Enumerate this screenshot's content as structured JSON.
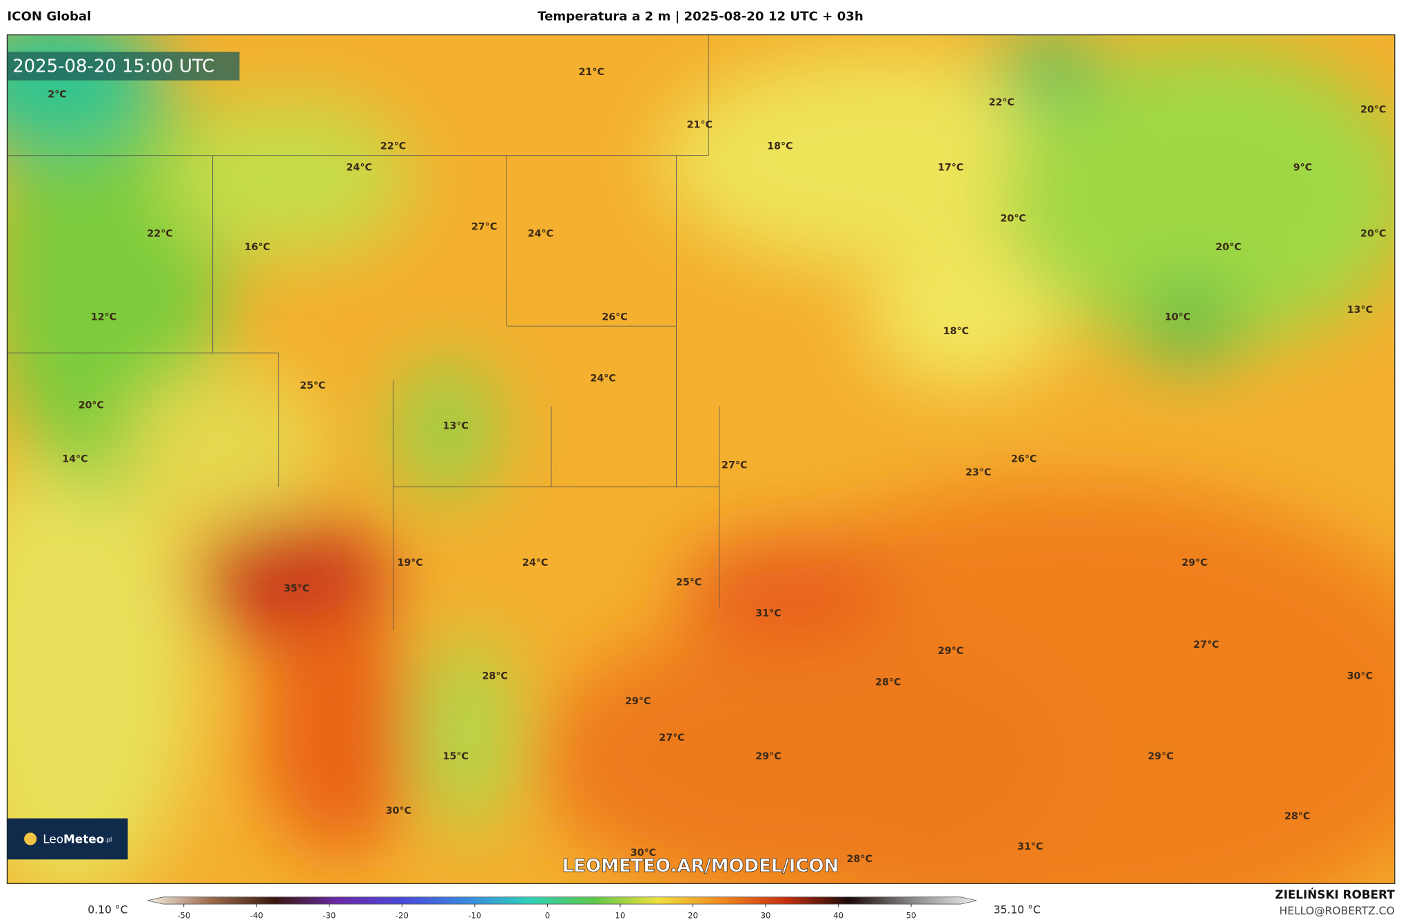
{
  "header": {
    "model": "ICON Global",
    "title": "Temperatura a 2 m | 2025-08-20 12 UTC + 03h"
  },
  "map": {
    "timestamp": "2025-08-20 15:00 UTC",
    "watermark": "LEOMETEO.AR/MODEL/ICON",
    "logo": {
      "part1": "Leo",
      "part2": "Meteo",
      "suffix": ".pl"
    },
    "labels": [
      "2°C",
      "21°C",
      "21°C",
      "18°C",
      "22°C",
      "20°C",
      "22°C",
      "24°C",
      "17°C",
      "9°C",
      "20°C",
      "22°C",
      "27°C",
      "24°C",
      "16°C",
      "20°C",
      "20°C",
      "12°C",
      "26°C",
      "10°C",
      "13°C",
      "18°C",
      "24°C",
      "25°C",
      "20°C",
      "13°C",
      "14°C",
      "27°C",
      "23°C",
      "26°C",
      "19°C",
      "24°C",
      "29°C",
      "25°C",
      "35°C",
      "31°C",
      "27°C",
      "29°C",
      "28°C",
      "28°C",
      "30°C",
      "29°C",
      "27°C",
      "15°C",
      "29°C",
      "29°C",
      "30°C",
      "28°C",
      "30°C",
      "28°C",
      "31°C"
    ]
  },
  "colorbar": {
    "min_label": "0.10 °C",
    "max_label": "35.10 °C",
    "lim": [
      -55,
      59
    ],
    "ticks": [
      -50,
      -40,
      -30,
      -20,
      -10,
      0,
      10,
      20,
      30,
      40,
      50
    ],
    "colors": [
      "#f4efe6",
      "#9a6a4a",
      "#3a1810",
      "#6a2aa8",
      "#4a4ad8",
      "#3a88e0",
      "#30d0b8",
      "#5cc84a",
      "#efe03e",
      "#f08a20",
      "#c83010",
      "#1a0a08",
      "#8a8a8a",
      "#eeeeee"
    ]
  },
  "footer": {
    "author": "ZIELIŃSKI ROBERT",
    "contact": "HELLO@ROBERTZ.CO"
  }
}
